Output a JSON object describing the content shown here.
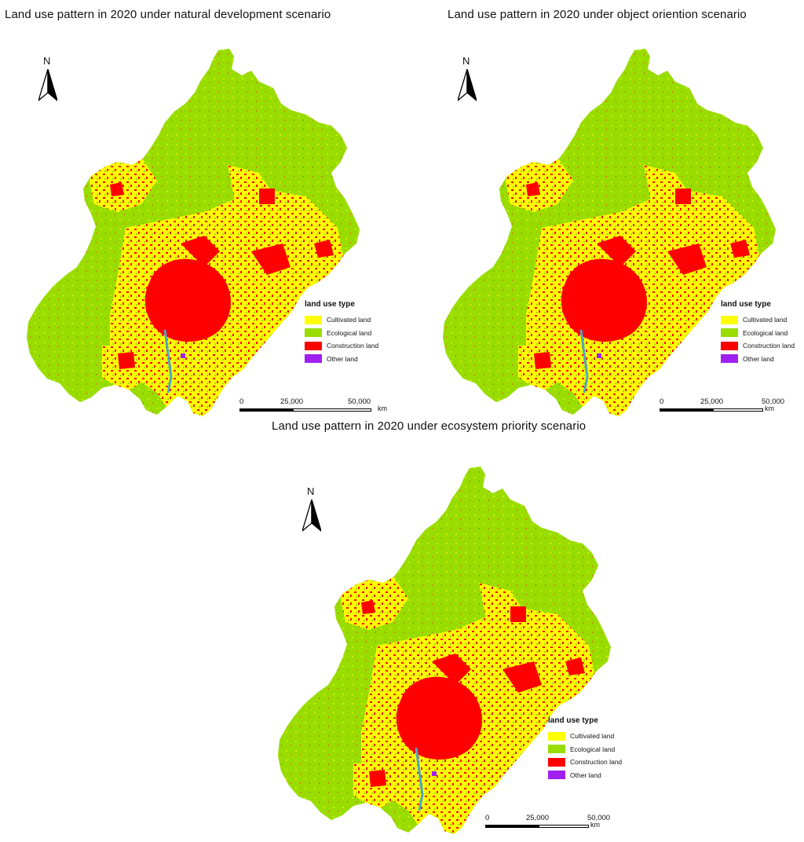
{
  "colors": {
    "cultivated": "#ffff00",
    "ecological": "#99dd00",
    "construction": "#ff0000",
    "other": "#a020f0",
    "water": "#4aa8c8"
  },
  "north_label": "N",
  "legend": {
    "title": "land use type",
    "items": [
      {
        "label": "Cultivated land",
        "color": "#ffff00"
      },
      {
        "label": "Ecological land",
        "color": "#99dd00"
      },
      {
        "label": "Construction land",
        "color": "#ff0000"
      },
      {
        "label": "Other land",
        "color": "#a020f0"
      }
    ]
  },
  "scalebar": {
    "ticks": [
      "0",
      "25,000",
      "50,000"
    ],
    "unit": "km"
  },
  "maps": [
    {
      "title": "Land use pattern in 2020 under natural development scenario"
    },
    {
      "title": "Land use pattern in 2020 under object oriention scenario"
    },
    {
      "title": "Land use pattern in 2020 under ecosystem priority scenario"
    }
  ]
}
